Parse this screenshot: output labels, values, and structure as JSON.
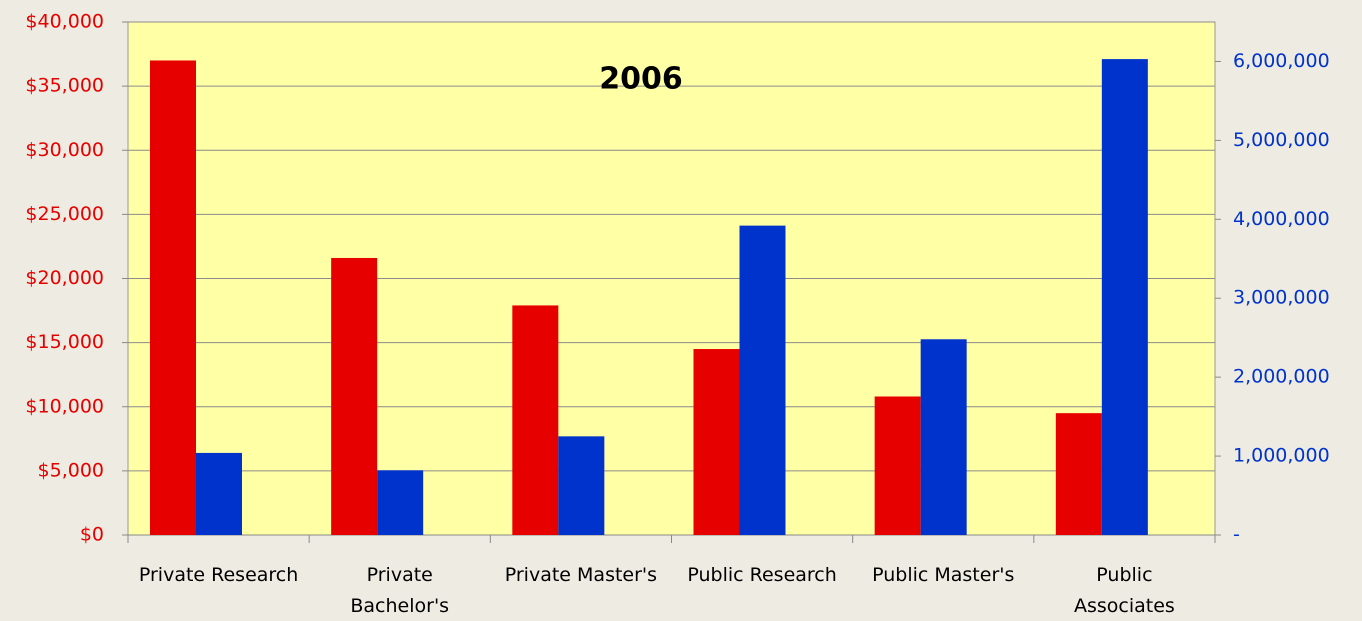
{
  "chart_data": {
    "type": "bar",
    "title": "2006",
    "categories": [
      "Private Research",
      "Private\nBachelor's",
      "Private Master's",
      "Public Research",
      "Public Master's",
      "Public\nAssociates"
    ],
    "series": [
      {
        "color": "#e60000",
        "values": [
          37000,
          21600,
          17900,
          14500,
          10800,
          9500
        ]
      },
      {
        "color": "#0033cc",
        "axis": "y2",
        "values": [
          1040000,
          820000,
          1250000,
          3920000,
          2480000,
          6030000
        ]
      }
    ],
    "ylim": [
      0,
      40000
    ],
    "yticks": [
      {
        "value": 0,
        "label": "$0"
      },
      {
        "value": 5000,
        "label": "$5,000"
      },
      {
        "value": 10000,
        "label": "$10,000"
      },
      {
        "value": 15000,
        "label": "$15,000"
      },
      {
        "value": 20000,
        "label": "$20,000"
      },
      {
        "value": 25000,
        "label": "$25,000"
      },
      {
        "value": 30000,
        "label": "$30,000"
      },
      {
        "value": 35000,
        "label": "$35,000"
      },
      {
        "value": 40000,
        "label": "$40,000"
      }
    ],
    "y2lim": [
      0,
      6500000
    ],
    "y2ticks": [
      {
        "value": 0,
        "label": "-"
      },
      {
        "value": 1000000,
        "label": "1,000,000"
      },
      {
        "value": 2000000,
        "label": "2,000,000"
      },
      {
        "value": 3000000,
        "label": "3,000,000"
      },
      {
        "value": 4000000,
        "label": "4,000,000"
      },
      {
        "value": 5000000,
        "label": "5,000,000"
      },
      {
        "value": 6000000,
        "label": "6,000,000"
      }
    ],
    "ytick_color": "#e60000",
    "y2tick_color": "#0033cc",
    "plot_background": "#ffffa6",
    "grid": true
  }
}
